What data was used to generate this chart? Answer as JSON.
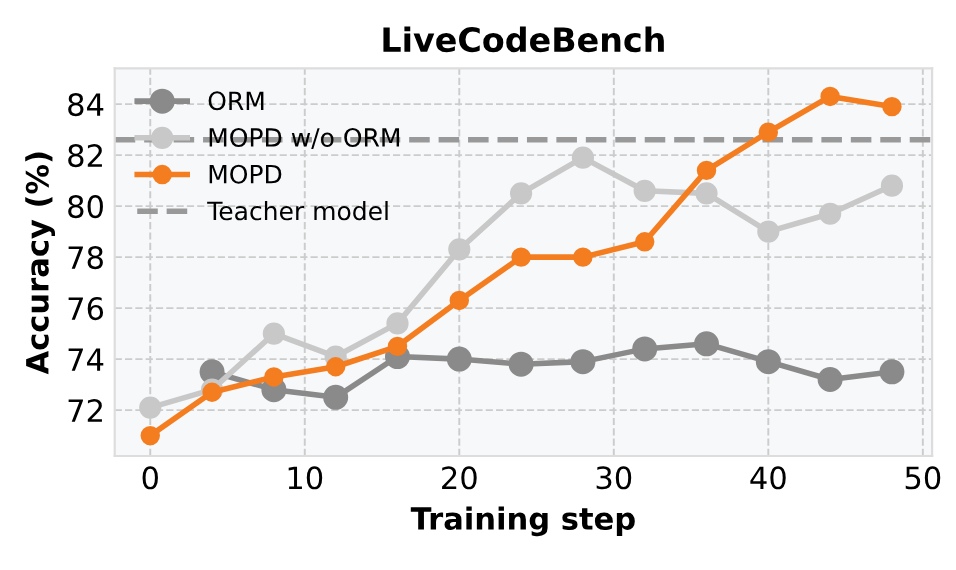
{
  "chart_data": {
    "type": "line",
    "title": "LiveCodeBench",
    "xlabel": "Training step",
    "ylabel": "Accuracy (%)",
    "series": [
      {
        "name": "ORM",
        "color": "#8a8a8a",
        "x": [
          4,
          8,
          12,
          16,
          20,
          24,
          28,
          32,
          36,
          40,
          44,
          48
        ],
        "values": [
          73.5,
          72.8,
          72.5,
          74.1,
          74.0,
          73.8,
          73.9,
          74.4,
          74.6,
          73.9,
          73.2,
          73.5
        ]
      },
      {
        "name": "MOPD w/o ORM",
        "color": "#c8c8c8",
        "x": [
          0,
          4,
          8,
          12,
          16,
          20,
          24,
          28,
          32,
          36,
          40,
          44,
          48
        ],
        "values": [
          72.1,
          72.8,
          75.0,
          74.1,
          75.4,
          78.3,
          80.5,
          81.9,
          80.6,
          80.5,
          79.0,
          79.7,
          80.8
        ]
      },
      {
        "name": "MOPD",
        "color": "#f47d20",
        "x": [
          0,
          4,
          8,
          12,
          16,
          20,
          24,
          28,
          32,
          36,
          40,
          44,
          48
        ],
        "values": [
          71.0,
          72.7,
          73.3,
          73.7,
          74.5,
          76.3,
          78.0,
          78.0,
          78.6,
          81.4,
          82.9,
          84.3,
          83.9
        ]
      }
    ],
    "ref_lines": [
      {
        "axis": "y",
        "value": 82.6,
        "label": "Teacher model",
        "color": "#999999",
        "line_style": "dashed"
      }
    ],
    "xlim": [
      -2.3,
      50.6
    ],
    "ylim": [
      70.2,
      85.4
    ],
    "xticks": [
      0,
      10,
      20,
      30,
      40,
      50
    ],
    "yticks": [
      72,
      74,
      76,
      78,
      80,
      82,
      84
    ],
    "grid": true,
    "legend": "upper left",
    "marker": "circle",
    "line_style": "solid"
  }
}
